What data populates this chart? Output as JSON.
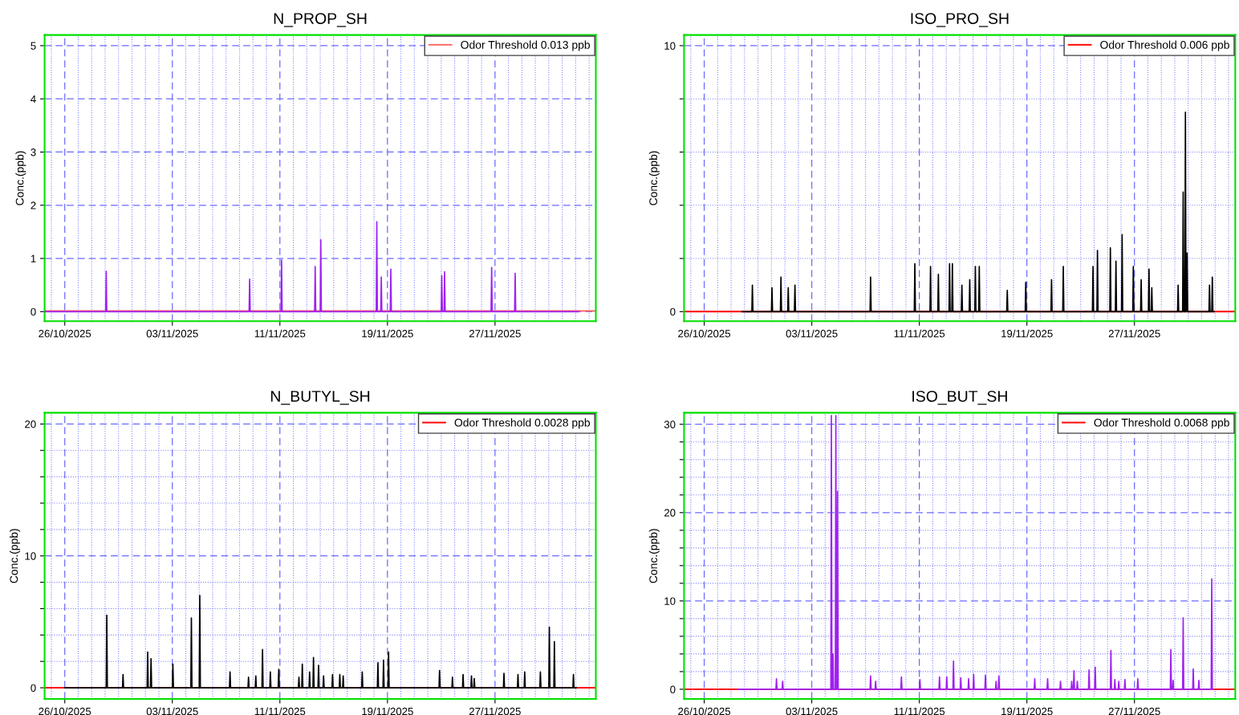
{
  "chart_data": [
    {
      "type": "line",
      "title": "N_PROP_SH",
      "ylabel": "Conc.(ppb)",
      "grid": true,
      "legend": "top right",
      "xlim": [
        "2025-10-24T12:00",
        "2025-12-04T12:00"
      ],
      "xticks": [
        {
          "value": "2025-10-25",
          "label": null
        },
        {
          "value": "2025-10-26",
          "label": "26/10/2025"
        },
        {
          "value": "2025-10-27",
          "label": null
        },
        {
          "value": "2025-10-28",
          "label": null
        },
        {
          "value": "2025-10-29",
          "label": null
        },
        {
          "value": "2025-10-30",
          "label": null
        },
        {
          "value": "2025-10-31",
          "label": null
        },
        {
          "value": "2025-11-01",
          "label": null
        },
        {
          "value": "2025-11-02",
          "label": null
        },
        {
          "value": "2025-11-03",
          "label": "03/11/2025"
        },
        {
          "value": "2025-11-04",
          "label": null
        },
        {
          "value": "2025-11-05",
          "label": null
        },
        {
          "value": "2025-11-06",
          "label": null
        },
        {
          "value": "2025-11-07",
          "label": null
        },
        {
          "value": "2025-11-08",
          "label": null
        },
        {
          "value": "2025-11-09",
          "label": null
        },
        {
          "value": "2025-11-10",
          "label": null
        },
        {
          "value": "2025-11-11",
          "label": "11/11/2025"
        },
        {
          "value": "2025-11-12",
          "label": null
        },
        {
          "value": "2025-11-13",
          "label": null
        },
        {
          "value": "2025-11-14",
          "label": null
        },
        {
          "value": "2025-11-15",
          "label": null
        },
        {
          "value": "2025-11-16",
          "label": null
        },
        {
          "value": "2025-11-17",
          "label": null
        },
        {
          "value": "2025-11-18",
          "label": null
        },
        {
          "value": "2025-11-19",
          "label": "19/11/2025"
        },
        {
          "value": "2025-11-20",
          "label": null
        },
        {
          "value": "2025-11-21",
          "label": null
        },
        {
          "value": "2025-11-22",
          "label": null
        },
        {
          "value": "2025-11-23",
          "label": null
        },
        {
          "value": "2025-11-24",
          "label": null
        },
        {
          "value": "2025-11-25",
          "label": null
        },
        {
          "value": "2025-11-26",
          "label": null
        },
        {
          "value": "2025-11-27",
          "label": "27/11/2025"
        },
        {
          "value": "2025-11-28",
          "label": null
        },
        {
          "value": "2025-11-29",
          "label": null
        },
        {
          "value": "2025-11-30",
          "label": null
        },
        {
          "value": "2025-12-01",
          "label": null
        },
        {
          "value": "2025-12-02",
          "label": null
        },
        {
          "value": "2025-12-03",
          "label": null
        },
        {
          "value": "2025-12-04",
          "label": null
        }
      ],
      "ylim": [
        -0.18,
        5.2
      ],
      "yticks": [
        0,
        1,
        2,
        3,
        4,
        5
      ],
      "ref_lines": [
        {
          "axis": "y",
          "value": 0.013,
          "label": "Odor Threshold 0.013 ppb",
          "color": "#ff6666"
        }
      ],
      "series": [
        {
          "color": "#a020f0",
          "x": [
            "2025-10-24T12:00",
            "2025-10-29T01:00",
            "2025-10-29T02:00",
            "2025-10-29T03:00",
            "2025-11-08T17:00",
            "2025-11-08T18:00",
            "2025-11-08T19:00",
            "2025-11-11T02:00",
            "2025-11-11T03:00",
            "2025-11-11T04:00",
            "2025-11-13T14:00",
            "2025-11-13T15:00",
            "2025-11-13T16:00",
            "2025-11-14T00:00",
            "2025-11-14T01:00",
            "2025-11-14T02:00",
            "2025-11-18T04:00",
            "2025-11-18T05:00",
            "2025-11-18T06:00",
            "2025-11-18T12:00",
            "2025-11-18T13:00",
            "2025-11-18T14:00",
            "2025-11-19T05:00",
            "2025-11-19T06:00",
            "2025-11-19T07:00",
            "2025-11-23T00:00",
            "2025-11-23T01:00",
            "2025-11-23T02:00",
            "2025-11-23T05:00",
            "2025-11-23T06:00",
            "2025-11-23T07:00",
            "2025-11-26T17:00",
            "2025-11-26T18:00",
            "2025-11-26T19:00",
            "2025-11-28T11:00",
            "2025-11-28T12:00",
            "2025-11-28T13:00",
            "2025-12-03T05:00"
          ],
          "values": [
            0,
            0,
            0.76,
            0,
            0,
            0.61,
            0,
            0,
            0.97,
            0,
            0,
            0.85,
            0,
            0,
            1.35,
            0,
            0,
            1.69,
            0,
            0,
            0.65,
            0,
            0,
            0.8,
            0,
            0,
            0.68,
            0,
            0,
            0.75,
            0,
            0,
            0.83,
            0,
            0,
            0.72,
            0,
            0
          ]
        }
      ]
    },
    {
      "type": "line",
      "title": "ISO_PRO_SH",
      "ylabel": "Conc.(ppb)",
      "grid": true,
      "legend": "top right",
      "xlim": [
        "2025-10-24T12:00",
        "2025-12-04T12:00"
      ],
      "xticks": [
        {
          "value": "2025-10-25",
          "label": null
        },
        {
          "value": "2025-10-26",
          "label": "26/10/2025"
        },
        {
          "value": "2025-10-27",
          "label": null
        },
        {
          "value": "2025-10-28",
          "label": null
        },
        {
          "value": "2025-10-29",
          "label": null
        },
        {
          "value": "2025-10-30",
          "label": null
        },
        {
          "value": "2025-10-31",
          "label": null
        },
        {
          "value": "2025-11-01",
          "label": null
        },
        {
          "value": "2025-11-02",
          "label": null
        },
        {
          "value": "2025-11-03",
          "label": "03/11/2025"
        },
        {
          "value": "2025-11-04",
          "label": null
        },
        {
          "value": "2025-11-05",
          "label": null
        },
        {
          "value": "2025-11-06",
          "label": null
        },
        {
          "value": "2025-11-07",
          "label": null
        },
        {
          "value": "2025-11-08",
          "label": null
        },
        {
          "value": "2025-11-09",
          "label": null
        },
        {
          "value": "2025-11-10",
          "label": null
        },
        {
          "value": "2025-11-11",
          "label": "11/11/2025"
        },
        {
          "value": "2025-11-12",
          "label": null
        },
        {
          "value": "2025-11-13",
          "label": null
        },
        {
          "value": "2025-11-14",
          "label": null
        },
        {
          "value": "2025-11-15",
          "label": null
        },
        {
          "value": "2025-11-16",
          "label": null
        },
        {
          "value": "2025-11-17",
          "label": null
        },
        {
          "value": "2025-11-18",
          "label": null
        },
        {
          "value": "2025-11-19",
          "label": "19/11/2025"
        },
        {
          "value": "2025-11-20",
          "label": null
        },
        {
          "value": "2025-11-21",
          "label": null
        },
        {
          "value": "2025-11-22",
          "label": null
        },
        {
          "value": "2025-11-23",
          "label": null
        },
        {
          "value": "2025-11-24",
          "label": null
        },
        {
          "value": "2025-11-25",
          "label": null
        },
        {
          "value": "2025-11-26",
          "label": null
        },
        {
          "value": "2025-11-27",
          "label": "27/11/2025"
        },
        {
          "value": "2025-11-28",
          "label": null
        },
        {
          "value": "2025-11-29",
          "label": null
        },
        {
          "value": "2025-11-30",
          "label": null
        },
        {
          "value": "2025-12-01",
          "label": null
        },
        {
          "value": "2025-12-02",
          "label": null
        },
        {
          "value": "2025-12-03",
          "label": null
        },
        {
          "value": "2025-12-04",
          "label": null
        }
      ],
      "ylim": [
        -0.36,
        10.4
      ],
      "yticks": [
        0,
        {
          "value": 2,
          "label": null
        },
        {
          "value": 4,
          "label": null
        },
        {
          "value": 6,
          "label": null
        },
        {
          "value": 8,
          "label": null
        },
        10
      ],
      "ref_lines": [
        {
          "axis": "y",
          "value": 0.006,
          "label": "Odor Threshold 0.006 ppb",
          "color": "#ff0000"
        }
      ],
      "series": [
        {
          "color": "#000000",
          "x": [
            "2025-10-28T20:00",
            "2025-10-29T13:00",
            "2025-10-29T14:00",
            "2025-10-29T15:00",
            "2025-10-31T00:00",
            "2025-10-31T01:00",
            "2025-10-31T02:00",
            "2025-10-31T16:00",
            "2025-10-31T17:00",
            "2025-10-31T18:00",
            "2025-11-01T05:00",
            "2025-11-01T06:00",
            "2025-11-01T07:00",
            "2025-11-01T17:00",
            "2025-11-01T18:00",
            "2025-11-01T19:00",
            "2025-11-07T08:00",
            "2025-11-07T09:00",
            "2025-11-07T10:00",
            "2025-11-10T15:00",
            "2025-11-10T16:00",
            "2025-11-10T17:00",
            "2025-11-11T19:00",
            "2025-11-11T20:00",
            "2025-11-11T21:00",
            "2025-11-12T09:00",
            "2025-11-12T10:00",
            "2025-11-12T11:00",
            "2025-11-13T05:00",
            "2025-11-13T06:00",
            "2025-11-13T07:00",
            "2025-11-13T10:00",
            "2025-11-13T11:00",
            "2025-11-13T12:00",
            "2025-11-14T03:00",
            "2025-11-14T04:00",
            "2025-11-14T05:00",
            "2025-11-14T17:00",
            "2025-11-14T18:00",
            "2025-11-14T19:00",
            "2025-11-15T03:00",
            "2025-11-15T04:00",
            "2025-11-15T05:00",
            "2025-11-15T10:00",
            "2025-11-15T11:00",
            "2025-11-15T12:00",
            "2025-11-17T12:00",
            "2025-11-17T13:00",
            "2025-11-17T14:00",
            "2025-11-18T21:00",
            "2025-11-18T22:00",
            "2025-11-18T23:00",
            "2025-11-20T19:00",
            "2025-11-20T20:00",
            "2025-11-20T21:00",
            "2025-11-21T16:00",
            "2025-11-21T17:00",
            "2025-11-21T18:00",
            "2025-11-23T21:00",
            "2025-11-23T22:00",
            "2025-11-23T23:00",
            "2025-11-24T05:00",
            "2025-11-24T06:00",
            "2025-11-24T07:00",
            "2025-11-25T04:00",
            "2025-11-25T05:00",
            "2025-11-25T06:00",
            "2025-11-25T14:00",
            "2025-11-25T15:00",
            "2025-11-25T16:00",
            "2025-11-26T01:00",
            "2025-11-26T02:00",
            "2025-11-26T03:00",
            "2025-11-26T21:00",
            "2025-11-26T22:00",
            "2025-11-26T23:00",
            "2025-11-27T11:00",
            "2025-11-27T12:00",
            "2025-11-27T13:00",
            "2025-11-28T01:00",
            "2025-11-28T02:00",
            "2025-11-28T03:00",
            "2025-11-28T06:00",
            "2025-11-28T07:00",
            "2025-11-28T08:00",
            "2025-11-30T05:00",
            "2025-11-30T06:00",
            "2025-11-30T07:00",
            "2025-11-30T14:00",
            "2025-11-30T15:00",
            "2025-11-30T16:00",
            "2025-11-30T18:00",
            "2025-11-30T19:00",
            "2025-11-30T20:00",
            "2025-11-30T21:00",
            "2025-11-30T22:00",
            "2025-11-30T23:00",
            "2025-12-02T13:00",
            "2025-12-02T14:00",
            "2025-12-02T15:00",
            "2025-12-02T18:00",
            "2025-12-02T19:00",
            "2025-12-02T20:00",
            "2025-12-02T22:00"
          ],
          "values": [
            0,
            0,
            1.0,
            0,
            0,
            0.9,
            0,
            0,
            1.3,
            0,
            0,
            0.9,
            0,
            0,
            1.0,
            0,
            0,
            1.3,
            0,
            0,
            1.8,
            0,
            0,
            1.7,
            0,
            0,
            1.4,
            0,
            0,
            1.8,
            0,
            0,
            1.8,
            0,
            0,
            1.0,
            0,
            0,
            1.2,
            0,
            0,
            1.7,
            0,
            0,
            1.7,
            0,
            0,
            0.8,
            0,
            0,
            1.1,
            0,
            0,
            1.2,
            0,
            0,
            1.7,
            0,
            0,
            1.7,
            0,
            0,
            2.3,
            0,
            0,
            2.4,
            0,
            0,
            1.9,
            0,
            0,
            2.9,
            0,
            0,
            1.7,
            0,
            0,
            1.2,
            0,
            0,
            1.6,
            0,
            0,
            0.9,
            0,
            0,
            1.0,
            0,
            0,
            4.5,
            0,
            0,
            7.5,
            0,
            0,
            2.2,
            0,
            0,
            1.0,
            0,
            0,
            1.3,
            0,
            0
          ]
        }
      ]
    },
    {
      "type": "line",
      "title": "N_BUTYL_SH",
      "ylabel": "Conc.(ppb)",
      "grid": true,
      "legend": "top right",
      "xlim": [
        "2025-10-24T12:00",
        "2025-12-04T12:00"
      ],
      "xticks": [
        {
          "value": "2025-10-25",
          "label": null
        },
        {
          "value": "2025-10-26",
          "label": "26/10/2025"
        },
        {
          "value": "2025-10-27",
          "label": null
        },
        {
          "value": "2025-10-28",
          "label": null
        },
        {
          "value": "2025-10-29",
          "label": null
        },
        {
          "value": "2025-10-30",
          "label": null
        },
        {
          "value": "2025-10-31",
          "label": null
        },
        {
          "value": "2025-11-01",
          "label": null
        },
        {
          "value": "2025-11-02",
          "label": null
        },
        {
          "value": "2025-11-03",
          "label": "03/11/2025"
        },
        {
          "value": "2025-11-04",
          "label": null
        },
        {
          "value": "2025-11-05",
          "label": null
        },
        {
          "value": "2025-11-06",
          "label": null
        },
        {
          "value": "2025-11-07",
          "label": null
        },
        {
          "value": "2025-11-08",
          "label": null
        },
        {
          "value": "2025-11-09",
          "label": null
        },
        {
          "value": "2025-11-10",
          "label": null
        },
        {
          "value": "2025-11-11",
          "label": "11/11/2025"
        },
        {
          "value": "2025-11-12",
          "label": null
        },
        {
          "value": "2025-11-13",
          "label": null
        },
        {
          "value": "2025-11-14",
          "label": null
        },
        {
          "value": "2025-11-15",
          "label": null
        },
        {
          "value": "2025-11-16",
          "label": null
        },
        {
          "value": "2025-11-17",
          "label": null
        },
        {
          "value": "2025-11-18",
          "label": null
        },
        {
          "value": "2025-11-19",
          "label": "19/11/2025"
        },
        {
          "value": "2025-11-20",
          "label": null
        },
        {
          "value": "2025-11-21",
          "label": null
        },
        {
          "value": "2025-11-22",
          "label": null
        },
        {
          "value": "2025-11-23",
          "label": null
        },
        {
          "value": "2025-11-24",
          "label": null
        },
        {
          "value": "2025-11-25",
          "label": null
        },
        {
          "value": "2025-11-26",
          "label": null
        },
        {
          "value": "2025-11-27",
          "label": "27/11/2025"
        },
        {
          "value": "2025-11-28",
          "label": null
        },
        {
          "value": "2025-11-29",
          "label": null
        },
        {
          "value": "2025-11-30",
          "label": null
        },
        {
          "value": "2025-12-01",
          "label": null
        },
        {
          "value": "2025-12-02",
          "label": null
        },
        {
          "value": "2025-12-03",
          "label": null
        },
        {
          "value": "2025-12-04",
          "label": null
        }
      ],
      "ylim": [
        -0.85,
        20.85
      ],
      "yticks": [
        0,
        {
          "value": 2,
          "label": null
        },
        {
          "value": 4,
          "label": null
        },
        {
          "value": 6,
          "label": null
        },
        {
          "value": 8,
          "label": null
        },
        10,
        {
          "value": 12,
          "label": null
        },
        {
          "value": 14,
          "label": null
        },
        {
          "value": 16,
          "label": null
        },
        {
          "value": 18,
          "label": null
        },
        20
      ],
      "ref_lines": [
        {
          "axis": "y",
          "value": 0.0028,
          "label": "Odor Threshold 0.0028 ppb",
          "color": "#ff0000"
        }
      ],
      "series": [
        {
          "color": "#000000",
          "x": [
            "2025-10-26T00:00",
            "2025-10-29T02:00",
            "2025-10-29T03:00",
            "2025-10-29T04:00",
            "2025-10-30T07:00",
            "2025-10-30T08:00",
            "2025-10-30T09:00",
            "2025-11-01T03:00",
            "2025-11-01T04:00",
            "2025-11-01T05:00",
            "2025-11-01T09:00",
            "2025-11-01T10:00",
            "2025-11-01T11:00",
            "2025-11-03T00:00",
            "2025-11-03T01:00",
            "2025-11-03T02:00",
            "2025-11-04T09:00",
            "2025-11-04T10:00",
            "2025-11-04T11:00",
            "2025-11-05T00:00",
            "2025-11-05T01:00",
            "2025-11-05T02:00",
            "2025-11-07T06:00",
            "2025-11-07T07:00",
            "2025-11-07T08:00",
            "2025-11-08T15:00",
            "2025-11-08T16:00",
            "2025-11-08T17:00",
            "2025-11-09T04:00",
            "2025-11-09T05:00",
            "2025-11-09T06:00",
            "2025-11-09T16:00",
            "2025-11-09T17:00",
            "2025-11-09T18:00",
            "2025-11-10T06:00",
            "2025-11-10T07:00",
            "2025-11-10T08:00",
            "2025-11-10T21:00",
            "2025-11-10T22:00",
            "2025-11-10T23:00",
            "2025-11-12T09:00",
            "2025-11-12T10:00",
            "2025-11-12T11:00",
            "2025-11-12T15:00",
            "2025-11-12T16:00",
            "2025-11-12T17:00",
            "2025-11-13T04:00",
            "2025-11-13T05:00",
            "2025-11-13T06:00",
            "2025-11-13T11:00",
            "2025-11-13T12:00",
            "2025-11-13T13:00",
            "2025-11-13T20:00",
            "2025-11-13T21:00",
            "2025-11-13T22:00",
            "2025-11-14T05:00",
            "2025-11-14T06:00",
            "2025-11-14T07:00",
            "2025-11-14T21:00",
            "2025-11-14T22:00",
            "2025-11-14T23:00",
            "2025-11-15T10:00",
            "2025-11-15T11:00",
            "2025-11-15T12:00",
            "2025-11-15T16:00",
            "2025-11-15T17:00",
            "2025-11-15T18:00",
            "2025-11-17T02:00",
            "2025-11-17T03:00",
            "2025-11-17T04:00",
            "2025-11-18T06:00",
            "2025-11-18T07:00",
            "2025-11-18T08:00",
            "2025-11-18T16:00",
            "2025-11-18T17:00",
            "2025-11-18T18:00",
            "2025-11-19T01:00",
            "2025-11-19T02:00",
            "2025-11-19T03:00",
            "2025-11-22T20:00",
            "2025-11-22T21:00",
            "2025-11-22T22:00",
            "2025-11-23T19:00",
            "2025-11-23T20:00",
            "2025-11-23T21:00",
            "2025-11-24T14:00",
            "2025-11-24T15:00",
            "2025-11-24T16:00",
            "2025-11-25T05:00",
            "2025-11-25T06:00",
            "2025-11-25T07:00",
            "2025-11-25T10:00",
            "2025-11-25T11:00",
            "2025-11-25T12:00",
            "2025-11-27T15:00",
            "2025-11-27T16:00",
            "2025-11-27T17:00",
            "2025-11-28T16:00",
            "2025-11-28T17:00",
            "2025-11-28T18:00",
            "2025-11-29T04:00",
            "2025-11-29T05:00",
            "2025-11-29T06:00",
            "2025-11-30T08:00",
            "2025-11-30T09:00",
            "2025-11-30T10:00",
            "2025-12-01T00:00",
            "2025-12-01T01:00",
            "2025-12-01T02:00",
            "2025-12-01T09:00",
            "2025-12-01T10:00",
            "2025-12-01T11:00",
            "2025-12-02T19:00",
            "2025-12-02T20:00",
            "2025-12-02T21:00",
            "2025-12-03T01:00"
          ],
          "values": [
            0,
            0,
            5.5,
            0,
            0,
            1.0,
            0,
            0,
            2.7,
            0,
            0,
            2.2,
            0,
            0,
            1.8,
            0,
            0,
            5.3,
            0,
            0,
            7.0,
            0,
            0,
            1.2,
            0,
            0,
            0.8,
            0,
            0,
            0.9,
            0,
            0,
            2.9,
            0,
            0,
            1.2,
            0,
            0,
            1.4,
            0,
            0,
            0.8,
            0,
            0,
            1.8,
            0,
            0,
            1.2,
            0,
            0,
            2.3,
            0,
            0,
            1.7,
            0,
            0,
            0.9,
            0,
            0,
            1.0,
            0,
            0,
            1.0,
            0,
            0,
            0.9,
            0,
            0,
            1.2,
            0,
            0,
            1.9,
            0,
            0,
            2.1,
            0,
            0,
            2.7,
            0,
            0,
            1.3,
            0,
            0,
            0.8,
            0,
            0,
            1.0,
            0,
            0,
            0.9,
            0,
            0,
            0.7,
            0,
            0,
            1.1,
            0,
            0,
            1.0,
            0,
            0,
            1.2,
            0,
            0,
            1.2,
            0,
            0,
            4.6,
            0,
            0,
            3.5,
            0,
            0,
            1.0,
            0,
            0
          ]
        }
      ]
    },
    {
      "type": "line",
      "title": "ISO_BUT_SH",
      "ylabel": "Conc.(ppb)",
      "grid": true,
      "legend": "top right",
      "xlim": [
        "2025-10-24T12:00",
        "2025-12-04T12:00"
      ],
      "xticks": [
        {
          "value": "2025-10-25",
          "label": null
        },
        {
          "value": "2025-10-26",
          "label": "26/10/2025"
        },
        {
          "value": "2025-10-27",
          "label": null
        },
        {
          "value": "2025-10-28",
          "label": null
        },
        {
          "value": "2025-10-29",
          "label": null
        },
        {
          "value": "2025-10-30",
          "label": null
        },
        {
          "value": "2025-10-31",
          "label": null
        },
        {
          "value": "2025-11-01",
          "label": null
        },
        {
          "value": "2025-11-02",
          "label": null
        },
        {
          "value": "2025-11-03",
          "label": "03/11/2025"
        },
        {
          "value": "2025-11-04",
          "label": null
        },
        {
          "value": "2025-11-05",
          "label": null
        },
        {
          "value": "2025-11-06",
          "label": null
        },
        {
          "value": "2025-11-07",
          "label": null
        },
        {
          "value": "2025-11-08",
          "label": null
        },
        {
          "value": "2025-11-09",
          "label": null
        },
        {
          "value": "2025-11-10",
          "label": null
        },
        {
          "value": "2025-11-11",
          "label": "11/11/2025"
        },
        {
          "value": "2025-11-12",
          "label": null
        },
        {
          "value": "2025-11-13",
          "label": null
        },
        {
          "value": "2025-11-14",
          "label": null
        },
        {
          "value": "2025-11-15",
          "label": null
        },
        {
          "value": "2025-11-16",
          "label": null
        },
        {
          "value": "2025-11-17",
          "label": null
        },
        {
          "value": "2025-11-18",
          "label": null
        },
        {
          "value": "2025-11-19",
          "label": "19/11/2025"
        },
        {
          "value": "2025-11-20",
          "label": null
        },
        {
          "value": "2025-11-21",
          "label": null
        },
        {
          "value": "2025-11-22",
          "label": null
        },
        {
          "value": "2025-11-23",
          "label": null
        },
        {
          "value": "2025-11-24",
          "label": null
        },
        {
          "value": "2025-11-25",
          "label": null
        },
        {
          "value": "2025-11-26",
          "label": null
        },
        {
          "value": "2025-11-27",
          "label": "27/11/2025"
        },
        {
          "value": "2025-11-28",
          "label": null
        },
        {
          "value": "2025-11-29",
          "label": null
        },
        {
          "value": "2025-11-30",
          "label": null
        },
        {
          "value": "2025-12-01",
          "label": null
        },
        {
          "value": "2025-12-02",
          "label": null
        },
        {
          "value": "2025-12-03",
          "label": null
        },
        {
          "value": "2025-12-04",
          "label": null
        }
      ],
      "ylim": [
        -1.1,
        31.3
      ],
      "yticks": [
        0,
        {
          "value": 2,
          "label": null
        },
        {
          "value": 4,
          "label": null
        },
        {
          "value": 6,
          "label": null
        },
        {
          "value": 8,
          "label": null
        },
        10,
        {
          "value": 12,
          "label": null
        },
        {
          "value": 14,
          "label": null
        },
        {
          "value": 16,
          "label": null
        },
        {
          "value": 18,
          "label": null
        },
        20,
        {
          "value": 22,
          "label": null
        },
        {
          "value": 24,
          "label": null
        },
        {
          "value": 26,
          "label": null
        },
        {
          "value": 28,
          "label": null
        },
        30
      ],
      "ref_lines": [
        {
          "axis": "y",
          "value": 0.0068,
          "label": "Odor Threshold 0.0068 ppb",
          "color": "#ff0000"
        }
      ],
      "series": [
        {
          "color": "#a020f0",
          "x": [
            "2025-10-28T12:00",
            "2025-10-31T08:00",
            "2025-10-31T09:00",
            "2025-10-31T10:00",
            "2025-10-31T19:00",
            "2025-10-31T20:00",
            "2025-10-31T21:00",
            "2025-11-04T10:00",
            "2025-11-04T11:00",
            "2025-11-04T12:00",
            "2025-11-04T13:00",
            "2025-11-04T14:00",
            "2025-11-04T15:00",
            "2025-11-04T18:00",
            "2025-11-04T19:00",
            "2025-11-04T20:00",
            "2025-11-04T21:00",
            "2025-11-04T22:00",
            "2025-11-04T23:00",
            "2025-11-07T08:00",
            "2025-11-07T09:00",
            "2025-11-07T10:00",
            "2025-11-07T17:00",
            "2025-11-07T18:00",
            "2025-11-07T19:00",
            "2025-11-09T15:00",
            "2025-11-09T16:00",
            "2025-11-09T17:00",
            "2025-11-11T00:00",
            "2025-11-11T01:00",
            "2025-11-11T02:00",
            "2025-11-12T11:00",
            "2025-11-12T12:00",
            "2025-11-12T13:00",
            "2025-11-13T00:00",
            "2025-11-13T01:00",
            "2025-11-13T02:00",
            "2025-11-13T12:00",
            "2025-11-13T13:00",
            "2025-11-13T14:00",
            "2025-11-14T01:00",
            "2025-11-14T02:00",
            "2025-11-14T03:00",
            "2025-11-14T15:00",
            "2025-11-14T16:00",
            "2025-11-14T17:00",
            "2025-11-15T00:00",
            "2025-11-15T01:00",
            "2025-11-15T02:00",
            "2025-11-15T21:00",
            "2025-11-15T22:00",
            "2025-11-15T23:00",
            "2025-11-16T16:00",
            "2025-11-16T17:00",
            "2025-11-16T18:00",
            "2025-11-16T21:00",
            "2025-11-16T22:00",
            "2025-11-16T23:00",
            "2025-11-19T13:00",
            "2025-11-19T14:00",
            "2025-11-19T15:00",
            "2025-11-20T12:00",
            "2025-11-20T13:00",
            "2025-11-20T14:00",
            "2025-11-21T11:00",
            "2025-11-21T12:00",
            "2025-11-21T13:00",
            "2025-11-22T07:00",
            "2025-11-22T08:00",
            "2025-11-22T09:00",
            "2025-11-22T11:00",
            "2025-11-22T12:00",
            "2025-11-22T13:00",
            "2025-11-22T17:00",
            "2025-11-22T18:00",
            "2025-11-22T19:00",
            "2025-11-23T14:00",
            "2025-11-23T15:00",
            "2025-11-23T16:00",
            "2025-11-24T01:00",
            "2025-11-24T02:00",
            "2025-11-24T03:00",
            "2025-11-25T05:00",
            "2025-11-25T06:00",
            "2025-11-25T07:00",
            "2025-11-25T12:00",
            "2025-11-25T13:00",
            "2025-11-25T14:00",
            "2025-11-25T19:00",
            "2025-11-25T20:00",
            "2025-11-25T21:00",
            "2025-11-26T06:00",
            "2025-11-26T07:00",
            "2025-11-26T08:00",
            "2025-11-27T05:00",
            "2025-11-27T06:00",
            "2025-11-27T07:00",
            "2025-11-29T16:00",
            "2025-11-29T17:00",
            "2025-11-29T18:00",
            "2025-11-29T20:00",
            "2025-11-29T21:00",
            "2025-11-29T22:00",
            "2025-11-30T14:00",
            "2025-11-30T15:00",
            "2025-11-30T16:00",
            "2025-12-01T08:00",
            "2025-12-01T09:00",
            "2025-12-01T10:00",
            "2025-12-01T18:00",
            "2025-12-01T19:00",
            "2025-12-01T20:00",
            "2025-12-02T17:00",
            "2025-12-02T18:00",
            "2025-12-02T19:00",
            "2025-12-02T20:00"
          ],
          "values": [
            0,
            0,
            1.2,
            0,
            0,
            0.9,
            0,
            0,
            31,
            0,
            0,
            4,
            0,
            0,
            31,
            0,
            0,
            22.4,
            0,
            0,
            1.5,
            0,
            0,
            0.9,
            0,
            0,
            1.4,
            0,
            0,
            1.1,
            0,
            0,
            1.4,
            0,
            0,
            1.4,
            0,
            0,
            3.2,
            0,
            0,
            1.3,
            0,
            0,
            1.2,
            0,
            0,
            1.7,
            0,
            0,
            1.6,
            0,
            0,
            0.9,
            0,
            0,
            1.5,
            0,
            0,
            1.2,
            0,
            0,
            1.2,
            0,
            0,
            0.9,
            0,
            0,
            0.9,
            0,
            0,
            2.1,
            0,
            0,
            0.9,
            0,
            0,
            2.2,
            0,
            0,
            2.5,
            0,
            0,
            4.4,
            0,
            0,
            1.1,
            0,
            0,
            0.9,
            0,
            0,
            1.1,
            0,
            0,
            1.2,
            0,
            0,
            4.5,
            0,
            0,
            1.0,
            0,
            0,
            8.1,
            0,
            0,
            2.3,
            0,
            0,
            1.0,
            0,
            0,
            12.5,
            0,
            0
          ]
        }
      ]
    }
  ]
}
